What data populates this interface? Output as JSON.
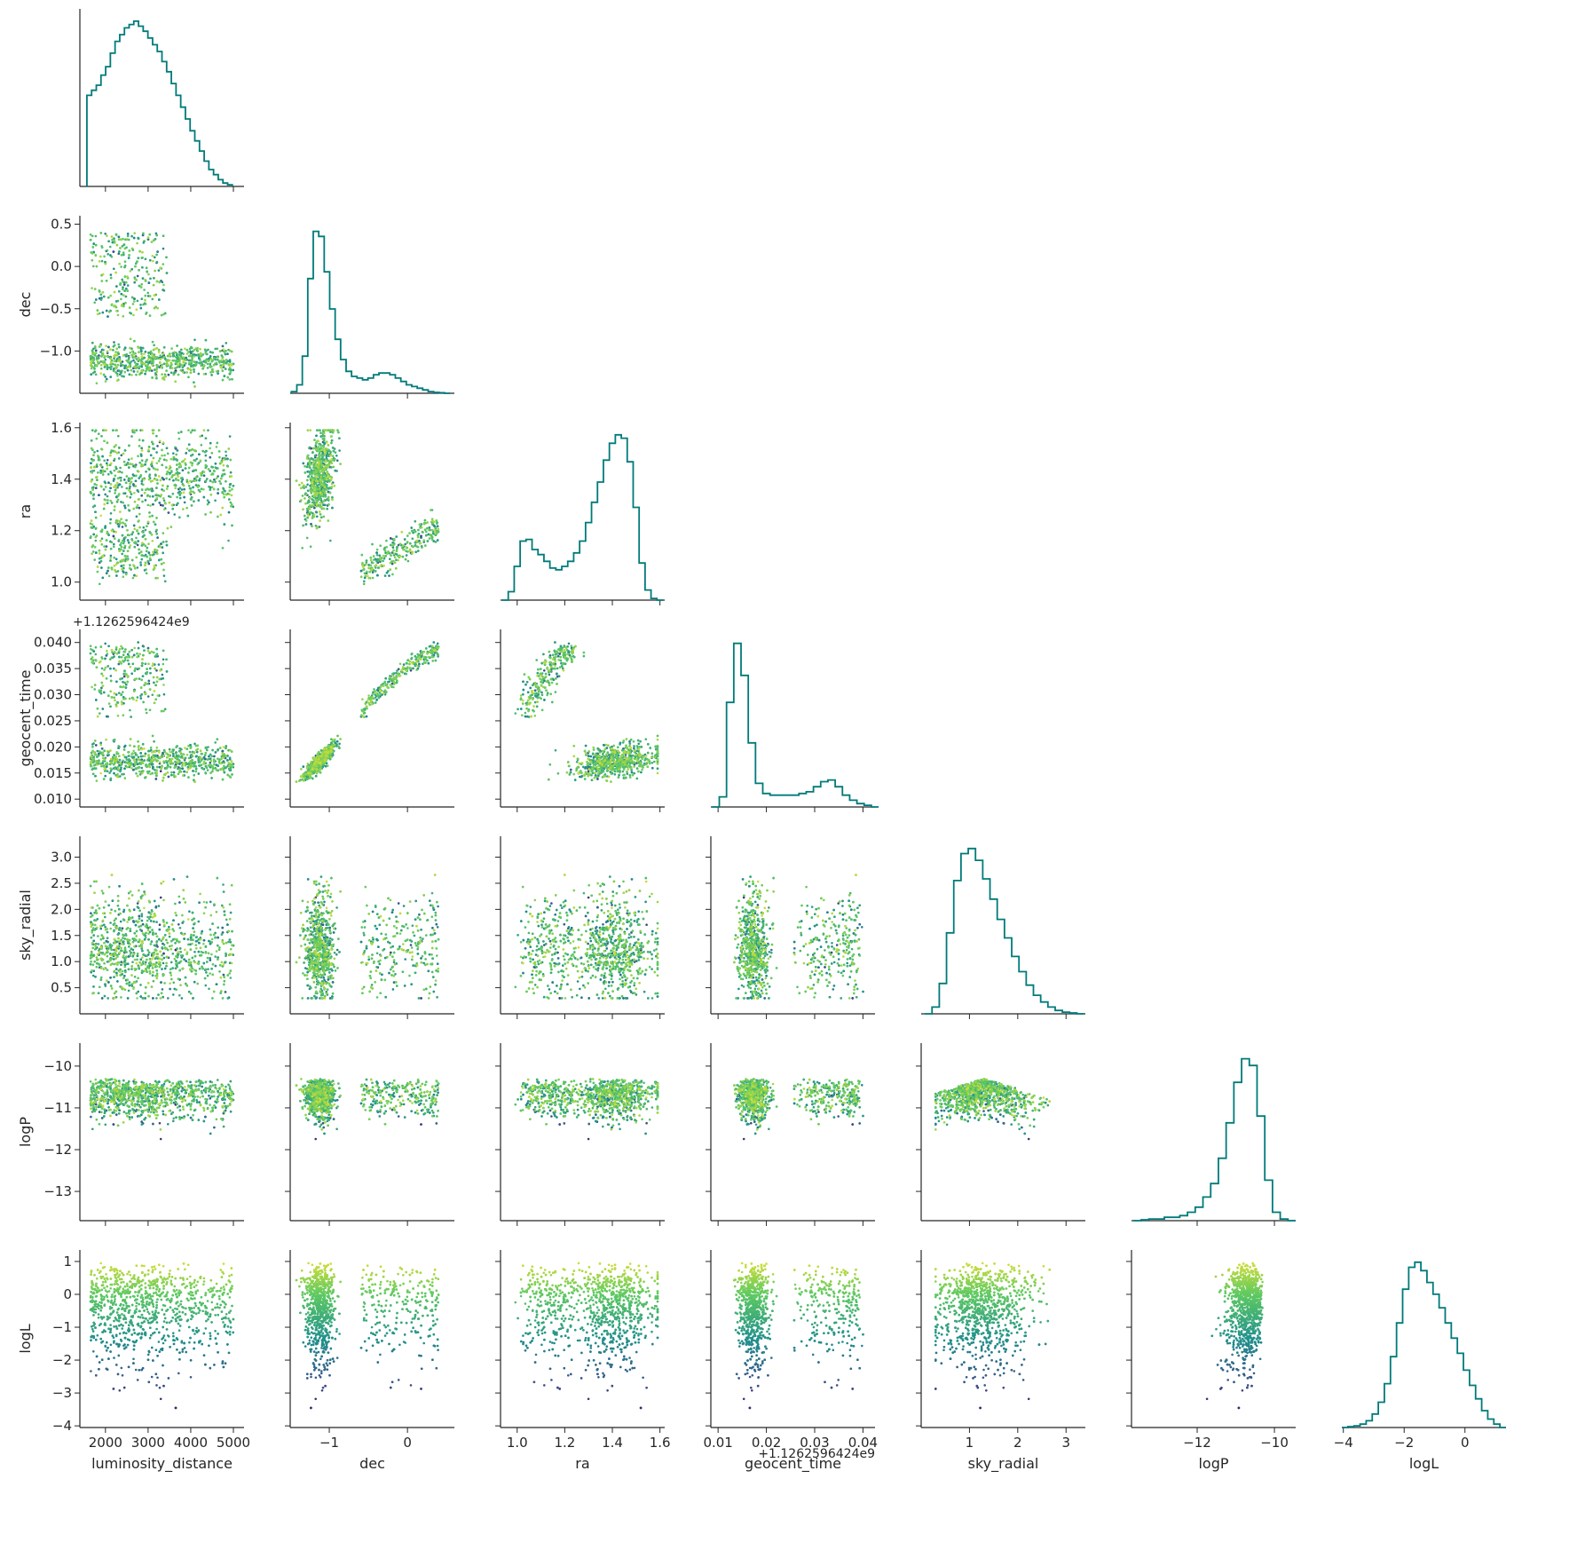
{
  "colors": {
    "histogram": "#007a7a",
    "axis": "#262626",
    "colormap": [
      "#440154",
      "#3b528b",
      "#21918c",
      "#5ec962",
      "#fde725"
    ]
  },
  "figure": {
    "type": "corner-plot",
    "variables": [
      "luminosity_distance",
      "dec",
      "ra",
      "geocent_time",
      "sky_radial",
      "logP",
      "logL"
    ],
    "offset_labels": {
      "geocent_time": "+1.1262596424e9"
    },
    "color_by": "logL"
  },
  "chart_data": {
    "type": "corner",
    "panels": {
      "diagonal": "histogram",
      "lower": "scatter"
    },
    "axes": {
      "luminosity_distance": {
        "label": "luminosity_distance",
        "range": [
          1400,
          5250
        ],
        "ticks": [
          2000,
          3000,
          4000,
          5000
        ],
        "tick_labels": [
          "2000",
          "3000",
          "4000",
          "5000"
        ]
      },
      "dec": {
        "label": "dec",
        "range": [
          -1.5,
          0.6
        ],
        "ticks": [
          -1.0,
          -0.5,
          0.0,
          0.5
        ],
        "tick_labels": [
          "−1.0",
          "−0.5",
          "0.0",
          "0.5"
        ],
        "x_ticks": [
          -1,
          0
        ],
        "x_tick_labels": [
          "−1",
          "0"
        ]
      },
      "ra": {
        "label": "ra",
        "range": [
          0.93,
          1.62
        ],
        "ticks": [
          1.0,
          1.2,
          1.4,
          1.6
        ],
        "tick_labels": [
          "1.0",
          "1.2",
          "1.4",
          "1.6"
        ]
      },
      "geocent_time": {
        "label": "geocent_time",
        "range": [
          0.0085,
          0.0425
        ],
        "ticks": [
          0.01,
          0.015,
          0.02,
          0.025,
          0.03,
          0.035,
          0.04
        ],
        "tick_labels": [
          "0.010",
          "0.015",
          "0.020",
          "0.025",
          "0.030",
          "0.035",
          "0.040"
        ],
        "x_ticks": [
          0.01,
          0.02,
          0.03,
          0.04
        ],
        "x_tick_labels": [
          "0.01",
          "0.02",
          "0.03",
          "0.04"
        ]
      },
      "sky_radial": {
        "label": "sky_radial",
        "range": [
          0.0,
          3.4
        ],
        "ticks": [
          0.5,
          1.0,
          1.5,
          2.0,
          2.5,
          3.0
        ],
        "tick_labels": [
          "0.5",
          "1.0",
          "1.5",
          "2.0",
          "2.5",
          "3.0"
        ],
        "x_ticks": [
          1,
          2,
          3
        ],
        "x_tick_labels": [
          "1",
          "2",
          "3"
        ]
      },
      "logP": {
        "label": "logP",
        "range": [
          -13.7,
          -9.45
        ],
        "ticks": [
          -13,
          -12,
          -11,
          -10
        ],
        "tick_labels": [
          "−13",
          "−12",
          "−11",
          "−10"
        ],
        "x_ticks": [
          -12,
          -10
        ],
        "x_tick_labels": [
          "−12",
          "−10"
        ]
      },
      "logL": {
        "label": "logL",
        "range": [
          -4.05,
          1.35
        ],
        "ticks": [
          -4,
          -3,
          -2,
          -1,
          0,
          1
        ],
        "tick_labels": [
          "−4",
          "−3",
          "−2",
          "−1",
          "0",
          "1"
        ],
        "x_ticks": [
          -4,
          -2,
          0
        ],
        "x_tick_labels": [
          "−4",
          "−2",
          "0"
        ]
      }
    },
    "marginals": {
      "luminosity_distance": {
        "bins": [
          1620,
          1730,
          1840,
          1950,
          2060,
          2170,
          2280,
          2390,
          2500,
          2610,
          2720,
          2830,
          2940,
          3050,
          3160,
          3270,
          3380,
          3490,
          3600,
          3710,
          3820,
          3930,
          4040,
          4150,
          4260,
          4370,
          4480,
          4590,
          4700,
          4810,
          4920
        ],
        "counts": [
          0.54,
          0.57,
          0.6,
          0.66,
          0.71,
          0.79,
          0.86,
          0.9,
          0.94,
          0.96,
          0.98,
          0.95,
          0.92,
          0.88,
          0.84,
          0.8,
          0.74,
          0.68,
          0.61,
          0.54,
          0.47,
          0.4,
          0.33,
          0.27,
          0.21,
          0.15,
          0.1,
          0.07,
          0.04,
          0.02,
          0.01
        ]
      },
      "dec": {
        "bins": [
          -1.45,
          -1.38,
          -1.31,
          -1.24,
          -1.17,
          -1.1,
          -1.03,
          -0.96,
          -0.89,
          -0.82,
          -0.75,
          -0.68,
          -0.61,
          -0.54,
          -0.47,
          -0.4,
          -0.33,
          -0.26,
          -0.19,
          -0.12,
          -0.05,
          0.02,
          0.09,
          0.16,
          0.23,
          0.3,
          0.37,
          0.44,
          0.51
        ],
        "counts": [
          0.01,
          0.05,
          0.22,
          0.68,
          0.96,
          0.93,
          0.72,
          0.5,
          0.32,
          0.2,
          0.13,
          0.1,
          0.09,
          0.08,
          0.09,
          0.11,
          0.12,
          0.12,
          0.11,
          0.09,
          0.07,
          0.05,
          0.04,
          0.03,
          0.02,
          0.01,
          0.005,
          0.003,
          0.0
        ]
      },
      "ra": {
        "bins": [
          0.95,
          0.975,
          1.0,
          1.025,
          1.05,
          1.075,
          1.1,
          1.125,
          1.15,
          1.175,
          1.2,
          1.225,
          1.25,
          1.275,
          1.3,
          1.325,
          1.35,
          1.375,
          1.4,
          1.425,
          1.45,
          1.475,
          1.5,
          1.525,
          1.55,
          1.575,
          1.6
        ],
        "counts": [
          0.0,
          0.05,
          0.2,
          0.35,
          0.36,
          0.3,
          0.27,
          0.23,
          0.19,
          0.18,
          0.2,
          0.23,
          0.28,
          0.35,
          0.46,
          0.58,
          0.7,
          0.83,
          0.93,
          0.98,
          0.96,
          0.82,
          0.55,
          0.22,
          0.06,
          0.01,
          0.0
        ]
      },
      "geocent_time": {
        "bins": [
          0.0095,
          0.011,
          0.0125,
          0.014,
          0.0155,
          0.017,
          0.0185,
          0.02,
          0.0215,
          0.023,
          0.0245,
          0.026,
          0.0275,
          0.029,
          0.0305,
          0.032,
          0.0335,
          0.035,
          0.0365,
          0.038,
          0.0395,
          0.041,
          0.0425
        ],
        "counts": [
          0.0,
          0.06,
          0.62,
          0.97,
          0.78,
          0.38,
          0.14,
          0.08,
          0.07,
          0.07,
          0.07,
          0.07,
          0.08,
          0.09,
          0.12,
          0.15,
          0.16,
          0.12,
          0.07,
          0.04,
          0.02,
          0.01,
          0.0
        ]
      },
      "sky_radial": {
        "bins": [
          0.15,
          0.3,
          0.45,
          0.6,
          0.75,
          0.9,
          1.05,
          1.2,
          1.35,
          1.5,
          1.65,
          1.8,
          1.95,
          2.1,
          2.25,
          2.4,
          2.55,
          2.7,
          2.85,
          3.0,
          3.15,
          3.3
        ],
        "counts": [
          0.0,
          0.04,
          0.18,
          0.48,
          0.79,
          0.95,
          0.98,
          0.91,
          0.8,
          0.68,
          0.56,
          0.45,
          0.34,
          0.25,
          0.17,
          0.11,
          0.07,
          0.04,
          0.02,
          0.01,
          0.005,
          0.0
        ]
      },
      "logP": {
        "bins": [
          -13.55,
          -13.35,
          -13.15,
          -12.95,
          -12.75,
          -12.55,
          -12.35,
          -12.15,
          -11.95,
          -11.75,
          -11.55,
          -11.35,
          -11.15,
          -10.95,
          -10.75,
          -10.55,
          -10.35,
          -10.15,
          -9.95,
          -9.75,
          -9.55
        ],
        "counts": [
          0.0,
          0.005,
          0.01,
          0.01,
          0.02,
          0.02,
          0.03,
          0.05,
          0.08,
          0.14,
          0.22,
          0.37,
          0.58,
          0.82,
          0.96,
          0.92,
          0.62,
          0.24,
          0.05,
          0.01,
          0.0
        ]
      },
      "logL": {
        "bins": [
          -3.95,
          -3.75,
          -3.55,
          -3.35,
          -3.15,
          -2.95,
          -2.75,
          -2.55,
          -2.35,
          -2.15,
          -1.95,
          -1.75,
          -1.55,
          -1.35,
          -1.15,
          -0.95,
          -0.75,
          -0.55,
          -0.35,
          -0.15,
          0.05,
          0.25,
          0.45,
          0.65,
          0.85,
          1.05,
          1.25
        ],
        "counts": [
          0.0,
          0.005,
          0.01,
          0.02,
          0.04,
          0.08,
          0.15,
          0.26,
          0.42,
          0.62,
          0.82,
          0.95,
          0.98,
          0.93,
          0.86,
          0.79,
          0.71,
          0.62,
          0.53,
          0.44,
          0.34,
          0.25,
          0.17,
          0.1,
          0.05,
          0.02,
          0.0
        ]
      }
    },
    "scatter_shapes": {
      "dec_vs_luminosity_distance": [
        {
          "x": [
            1700,
            3600
          ],
          "y": [
            -1.4,
            -0.7
          ],
          "weight": 0.55
        },
        {
          "x": [
            1650,
            3300
          ],
          "y": [
            -0.8,
            0.45
          ],
          "weight": 0.3
        },
        {
          "x": [
            3600,
            5000
          ],
          "y": [
            -1.3,
            -0.9
          ],
          "weight": 0.15
        }
      ],
      "ra_vs_luminosity_distance": [
        {
          "x": [
            1650,
            5000
          ],
          "y": [
            1.2,
            1.58
          ],
          "weight": 0.75
        },
        {
          "x": [
            1650,
            3500
          ],
          "y": [
            0.95,
            1.2
          ],
          "weight": 0.25
        }
      ],
      "geocent_time_vs_luminosity_distance": [
        {
          "x": [
            1650,
            5000
          ],
          "y": [
            0.0105,
            0.019
          ],
          "weight": 0.7
        },
        {
          "x": [
            1650,
            3300
          ],
          "y": [
            0.019,
            0.041
          ],
          "weight": 0.3
        }
      ]
    }
  }
}
